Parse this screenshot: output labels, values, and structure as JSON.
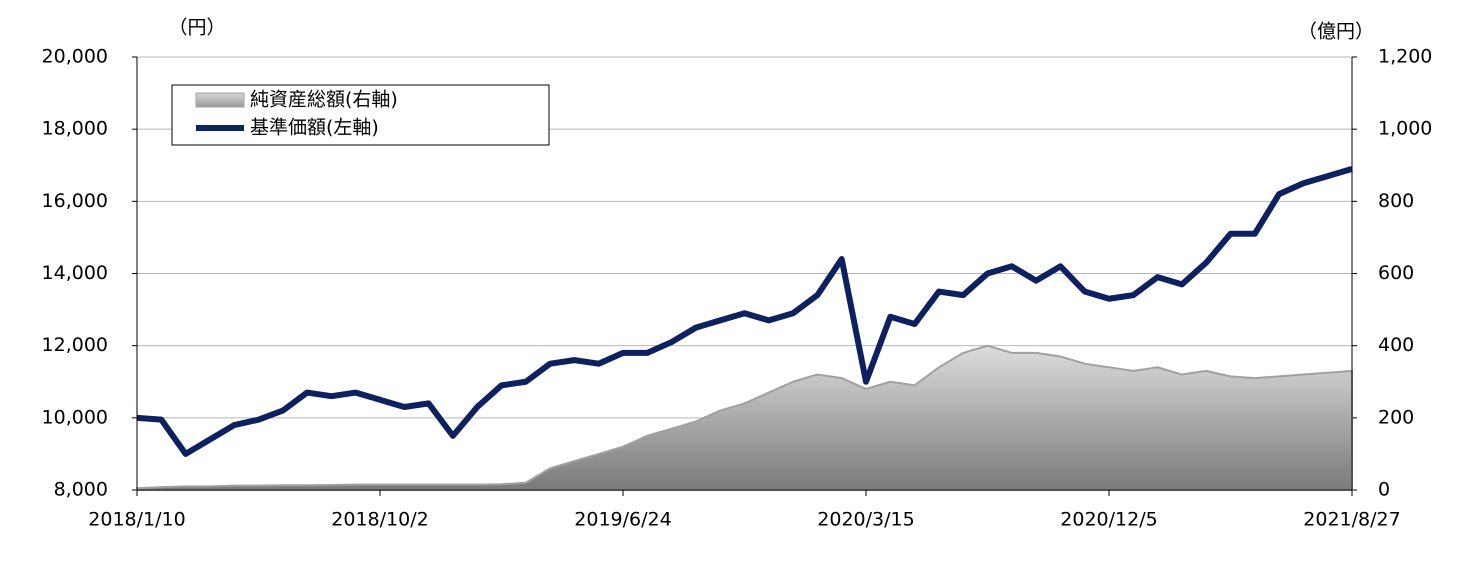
{
  "chart_data": {
    "type": "line",
    "y_unit_label": "（円）",
    "y2_unit_label": "（億円）",
    "categories": [
      "2018/1/10",
      null,
      null,
      null,
      null,
      null,
      null,
      null,
      null,
      null,
      "2018/10/2",
      null,
      null,
      null,
      null,
      null,
      null,
      null,
      null,
      null,
      "2019/6/24",
      null,
      null,
      null,
      null,
      null,
      null,
      null,
      null,
      null,
      "2020/3/15",
      null,
      null,
      null,
      null,
      null,
      null,
      null,
      null,
      null,
      "2020/12/5",
      null,
      null,
      null,
      null,
      null,
      null,
      null,
      null,
      null,
      "2021/8/27"
    ],
    "series": [
      {
        "name": "純資産総額(右軸)",
        "type": "area",
        "axis": "y2",
        "color": "#a0a0a0",
        "values": [
          5,
          8,
          10,
          10,
          12,
          12,
          13,
          13,
          14,
          15,
          15,
          15,
          15,
          15,
          15,
          16,
          20,
          60,
          80,
          100,
          120,
          150,
          170,
          190,
          220,
          240,
          270,
          300,
          320,
          310,
          280,
          300,
          290,
          340,
          380,
          400,
          380,
          380,
          370,
          350,
          340,
          330,
          340,
          320,
          330,
          315,
          310,
          315,
          320,
          325,
          330
        ]
      },
      {
        "name": "基準価額(左軸)",
        "type": "line",
        "axis": "y",
        "color": "#0d2060",
        "values": [
          10000,
          9950,
          9000,
          9400,
          9800,
          9950,
          10200,
          10700,
          10600,
          10700,
          10500,
          10300,
          10400,
          9500,
          10300,
          10900,
          11000,
          11500,
          11600,
          11500,
          11800,
          11800,
          12100,
          12500,
          12700,
          12900,
          12700,
          12900,
          13400,
          14400,
          11000,
          12800,
          12600,
          13500,
          13400,
          14000,
          14200,
          13800,
          14200,
          13500,
          13300,
          13400,
          13900,
          13700,
          14300,
          15100,
          15100,
          16200,
          16500,
          16700,
          16900
        ]
      }
    ],
    "ylim": [
      8000,
      20000
    ],
    "yticks": [
      {
        "value": 8000,
        "label": "8,000"
      },
      {
        "value": 10000,
        "label": "10,000"
      },
      {
        "value": 12000,
        "label": "12,000"
      },
      {
        "value": 14000,
        "label": "14,000"
      },
      {
        "value": 16000,
        "label": "16,000"
      },
      {
        "value": 18000,
        "label": "18,000"
      },
      {
        "value": 20000,
        "label": "20,000"
      }
    ],
    "y2lim": [
      0,
      1200
    ],
    "y2ticks": [
      0,
      200,
      400,
      600,
      800,
      {
        "value": 1000,
        "label": "1,000"
      },
      {
        "value": 1200,
        "label": "1,200"
      }
    ],
    "grid": true,
    "legend": "upper left"
  }
}
